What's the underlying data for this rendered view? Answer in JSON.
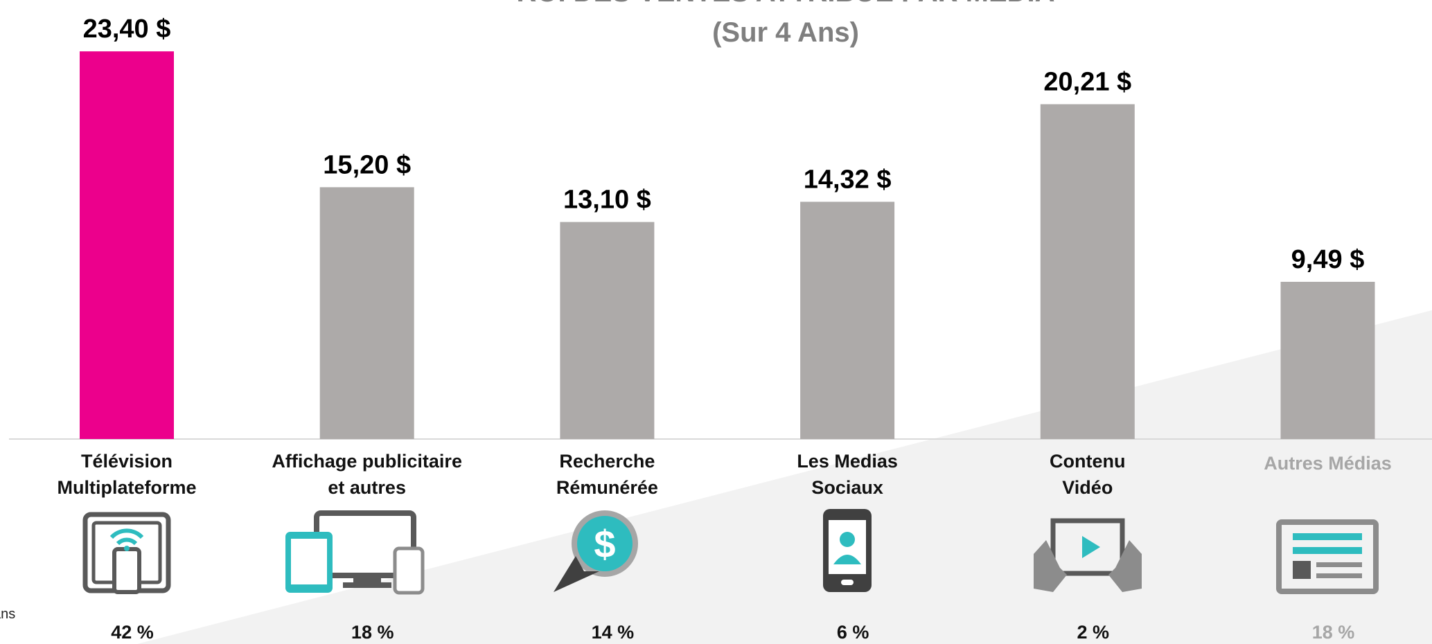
{
  "chart_data": {
    "type": "bar",
    "title": "ROI DES VENTES ATTRIBUÉ PAR MÉDIA",
    "subtitle": "(Sur 4 Ans)",
    "annotations": [
      "ans"
    ],
    "categories": [
      [
        "Télévision",
        "Multiplateforme"
      ],
      [
        "Affichage publicitaire",
        "et autres"
      ],
      [
        "Recherche",
        "Rémunérée"
      ],
      [
        "Les Medias",
        "Sociaux"
      ],
      [
        "Contenu",
        "Vidéo"
      ],
      [
        "Autres Médias"
      ]
    ],
    "values": [
      23.4,
      15.2,
      13.1,
      14.32,
      20.21,
      9.49
    ],
    "value_labels": [
      "23,40 $",
      "15,20 $",
      "13,10 $",
      "14,32 $",
      "20,21 $",
      "9,49 $"
    ],
    "shares": [
      42,
      18,
      14,
      6,
      2,
      18
    ],
    "share_labels": [
      "42 %",
      "18 %",
      "14 %",
      "6 %",
      "2 %",
      "18 %"
    ],
    "colors": [
      "#ec008c",
      "#adaaa9",
      "#adaaa9",
      "#adaaa9",
      "#adaaa9",
      "#adaaa9"
    ],
    "label_colors": [
      "#111111",
      "#111111",
      "#111111",
      "#111111",
      "#111111",
      "#a6a6a6"
    ],
    "ylim": [
      0,
      26.5
    ]
  }
}
